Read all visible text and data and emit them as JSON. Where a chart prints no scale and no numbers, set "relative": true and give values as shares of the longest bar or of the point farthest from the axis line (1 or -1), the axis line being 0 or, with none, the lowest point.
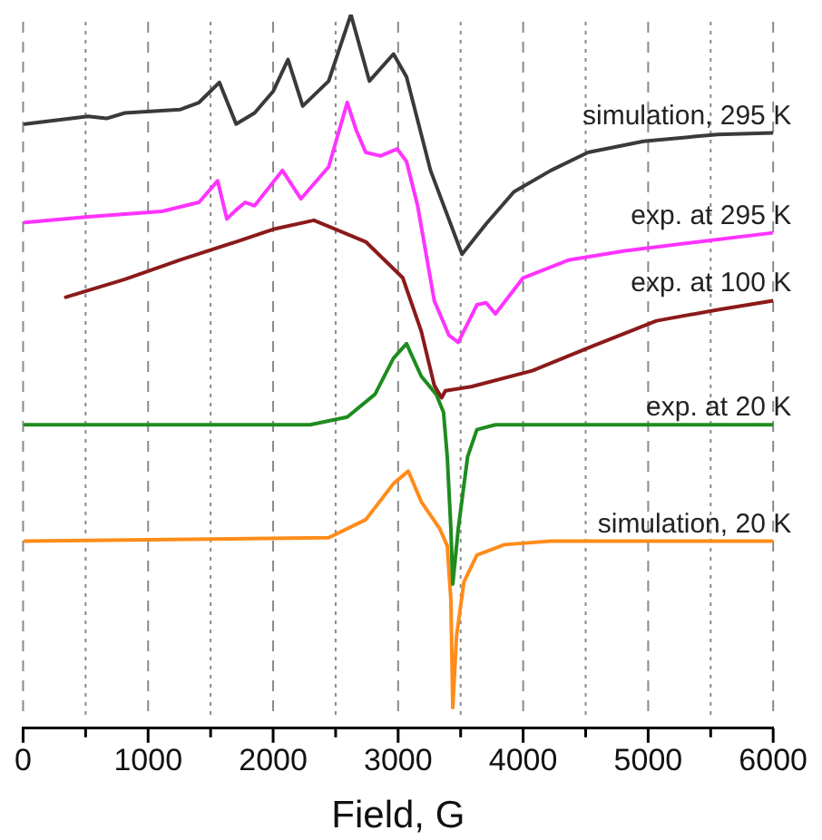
{
  "chart_data": {
    "type": "line",
    "xlabel": "Field, G",
    "relative": true,
    "xlim": [
      0,
      6000
    ],
    "xticks": [
      0,
      {
        "value": 500,
        "label": null
      },
      1000,
      {
        "value": 1500,
        "label": null
      },
      2000,
      {
        "value": 2500,
        "label": null
      },
      3000,
      {
        "value": 3500,
        "label": null
      },
      4000,
      {
        "value": 4500,
        "label": null
      },
      5000,
      {
        "value": 5500,
        "label": null
      },
      6000
    ],
    "grid": "x",
    "legend": false,
    "marker": "none",
    "line_style": "solid",
    "series": [
      {
        "name": "simulation, 295 K",
        "color": "#3a3a3a",
        "x": [
          15,
          519,
          667,
          815,
          1259,
          1407,
          1570,
          1704,
          1852,
          2000,
          2119,
          2237,
          2444,
          2622,
          2770,
          2963,
          3067,
          3259,
          3511,
          3704,
          3926,
          4222,
          4519,
          4963,
          5556,
          6000
        ],
        "values": [
          0.842,
          0.853,
          0.85,
          0.858,
          0.863,
          0.873,
          0.902,
          0.842,
          0.858,
          0.889,
          0.935,
          0.868,
          0.904,
          1.0,
          0.904,
          0.943,
          0.91,
          0.775,
          0.654,
          0.698,
          0.744,
          0.775,
          0.801,
          0.817,
          0.827,
          0.829
        ]
      },
      {
        "name": "exp. at 295 K",
        "color": "#ff33ff",
        "x": [
          15,
          519,
          1111,
          1407,
          1556,
          1630,
          1704,
          1778,
          1852,
          2074,
          2222,
          2444,
          2593,
          2667,
          2741,
          2859,
          2993,
          3067,
          3156,
          3289,
          3407,
          3481,
          3630,
          3704,
          3778,
          4000,
          4370,
          4815,
          5407,
          6000
        ],
        "values": [
          0.7,
          0.708,
          0.716,
          0.729,
          0.76,
          0.705,
          0.718,
          0.729,
          0.724,
          0.775,
          0.734,
          0.78,
          0.873,
          0.832,
          0.801,
          0.796,
          0.806,
          0.788,
          0.724,
          0.587,
          0.537,
          0.527,
          0.581,
          0.584,
          0.568,
          0.62,
          0.646,
          0.659,
          0.672,
          0.685
        ]
      },
      {
        "name": "exp. at 100 K",
        "color": "#8b1a1a",
        "x": [
          341,
          815,
          1259,
          1704,
          2000,
          2326,
          2741,
          3037,
          3185,
          3289,
          3348,
          3378,
          3585,
          4074,
          4563,
          5067,
          5556,
          6000
        ],
        "values": [
          0.592,
          0.618,
          0.646,
          0.672,
          0.69,
          0.703,
          0.672,
          0.62,
          0.543,
          0.465,
          0.447,
          0.457,
          0.463,
          0.486,
          0.522,
          0.558,
          0.574,
          0.587
        ]
      },
      {
        "name": "exp. at 20 K",
        "color": "#1e8c1e",
        "x": [
          15,
          2296,
          2593,
          2815,
          2963,
          3067,
          3185,
          3304,
          3363,
          3393,
          3422,
          3437,
          3481,
          3556,
          3630,
          3778,
          6000
        ],
        "values": [
          0.408,
          0.408,
          0.419,
          0.452,
          0.504,
          0.525,
          0.478,
          0.452,
          0.426,
          0.362,
          0.258,
          0.178,
          0.258,
          0.362,
          0.401,
          0.408,
          0.408
        ]
      },
      {
        "name": "simulation, 20 K",
        "color": "#ff8c1a",
        "x": [
          15,
          2444,
          2741,
          2963,
          3081,
          3185,
          3333,
          3393,
          3422,
          3437,
          3467,
          3526,
          3630,
          3852,
          4222,
          6000
        ],
        "values": [
          0.24,
          0.245,
          0.271,
          0.323,
          0.341,
          0.297,
          0.258,
          0.233,
          0.155,
          0,
          0.103,
          0.181,
          0.22,
          0.235,
          0.24,
          0.24
        ]
      }
    ]
  }
}
